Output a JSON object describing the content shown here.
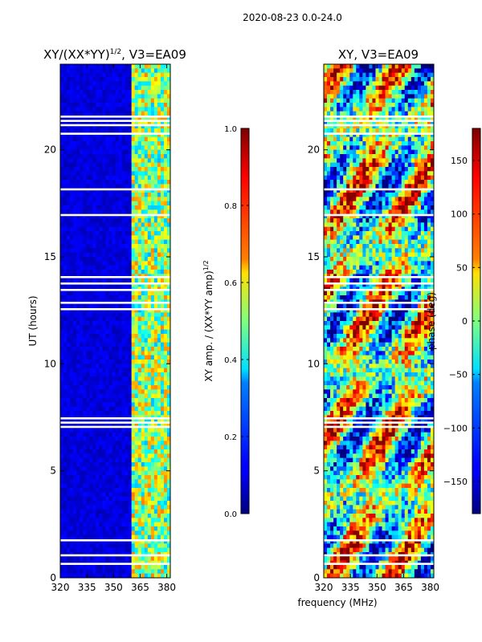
{
  "suptitle": "2020-08-23 0.0-24.0",
  "chart_data": [
    {
      "type": "heatmap",
      "title": "XY/(XX*YY)",
      "title_exponent": "1/2",
      "title_suffix": ", V3=EA09",
      "xlabel": "",
      "ylabel": "UT (hours)",
      "xlim": [
        320,
        382
      ],
      "ylim": [
        0,
        24
      ],
      "xticks": [
        "320",
        "335",
        "350",
        "365",
        "380"
      ],
      "xtick_values": [
        320,
        335,
        350,
        365,
        380
      ],
      "yticks": [
        "0",
        "5",
        "10",
        "15",
        "20"
      ],
      "ytick_values": [
        0,
        5,
        10,
        15,
        20
      ],
      "colorbar": {
        "label": "XY amp. / (XX*YY amp)",
        "label_exponent": "1/2",
        "range": [
          0.0,
          1.0
        ],
        "ticks": [
          "0.0",
          "0.2",
          "0.4",
          "0.6",
          "0.8",
          "1.0"
        ],
        "tick_values": [
          0.0,
          0.2,
          0.4,
          0.6,
          0.8,
          1.0
        ]
      },
      "flagged_hours": [
        21.2,
        21.4,
        21.6,
        20.8,
        18.2,
        17.0,
        14.1,
        13.8,
        13.5,
        12.9,
        12.6,
        7.5,
        7.3,
        7.1,
        1.8,
        1.1,
        0.7
      ]
    },
    {
      "type": "heatmap",
      "title": "XY, V3=EA09",
      "xlabel": "frequency (MHz)",
      "ylabel": "",
      "xlim": [
        320,
        382
      ],
      "ylim": [
        0,
        24
      ],
      "xticks": [
        "320",
        "335",
        "350",
        "365",
        "380"
      ],
      "xtick_values": [
        320,
        335,
        350,
        365,
        380
      ],
      "yticks": [
        "0",
        "5",
        "10",
        "15",
        "20"
      ],
      "ytick_values": [
        0,
        5,
        10,
        15,
        20
      ],
      "colorbar": {
        "label": "phase (deg)",
        "range": [
          -180,
          180
        ],
        "ticks": [
          "−150",
          "−100",
          "−50",
          "0",
          "50",
          "100",
          "150"
        ],
        "tick_values": [
          -150,
          -100,
          -50,
          0,
          50,
          100,
          150
        ]
      },
      "flagged_hours": [
        21.2,
        21.4,
        21.6,
        20.8,
        18.2,
        17.0,
        14.1,
        13.8,
        13.5,
        12.9,
        12.6,
        7.5,
        7.3,
        7.1,
        1.8,
        1.1,
        0.7
      ]
    }
  ],
  "colors": {
    "jet_low": "#00007f",
    "jet_mid": "#7fff7f",
    "jet_high": "#7f0000",
    "gap": "#ffffff"
  }
}
